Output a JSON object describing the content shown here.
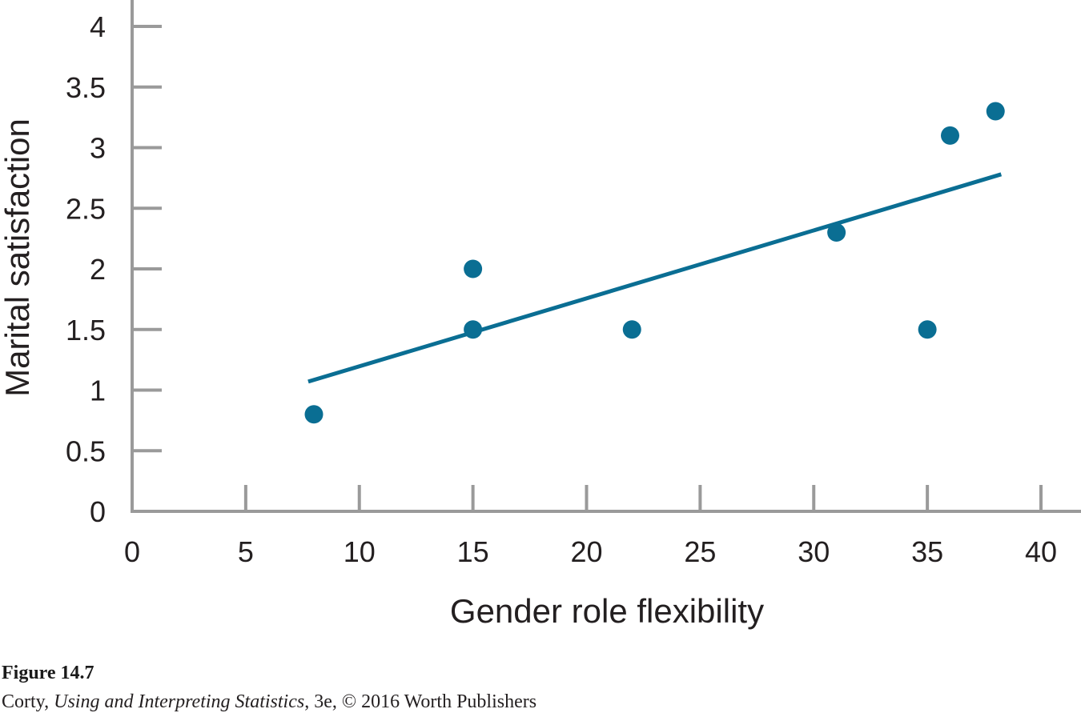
{
  "chart_data": {
    "type": "scatter",
    "xlabel": "Gender role flexibility",
    "ylabel": "Marital satisfaction",
    "xlim": [
      0,
      40
    ],
    "ylim": [
      0,
      4
    ],
    "xticks": [
      0,
      5,
      10,
      15,
      20,
      25,
      30,
      35,
      40
    ],
    "yticks": [
      0,
      0.5,
      1,
      1.5,
      2,
      2.5,
      3,
      3.5,
      4
    ],
    "xtick_labels": [
      "0",
      "5",
      "10",
      "15",
      "20",
      "25",
      "30",
      "35",
      "40"
    ],
    "ytick_labels": [
      "0",
      "0.5",
      "1",
      "1.5",
      "2",
      "2.5",
      "3",
      "3.5",
      "4"
    ],
    "points": [
      {
        "x": 8,
        "y": 0.8
      },
      {
        "x": 15,
        "y": 1.5
      },
      {
        "x": 15,
        "y": 2.0
      },
      {
        "x": 22,
        "y": 1.5
      },
      {
        "x": 31,
        "y": 2.3
      },
      {
        "x": 35,
        "y": 1.5
      },
      {
        "x": 36,
        "y": 3.1
      },
      {
        "x": 38,
        "y": 3.3
      }
    ],
    "regression_line": {
      "x": [
        7.75,
        38.25
      ],
      "y": [
        1.07,
        2.78
      ]
    },
    "grid": false,
    "colors": {
      "marker": "#0a6e93",
      "line": "#0a6e93",
      "axis": "#9a9a9a"
    }
  },
  "caption": {
    "figure_label": "Figure 14.7",
    "author": "Corty",
    "sep1": ", ",
    "book_title": "Using and Interpreting Statistics",
    "rest": ", 3e, © 2016 Worth Publishers"
  }
}
